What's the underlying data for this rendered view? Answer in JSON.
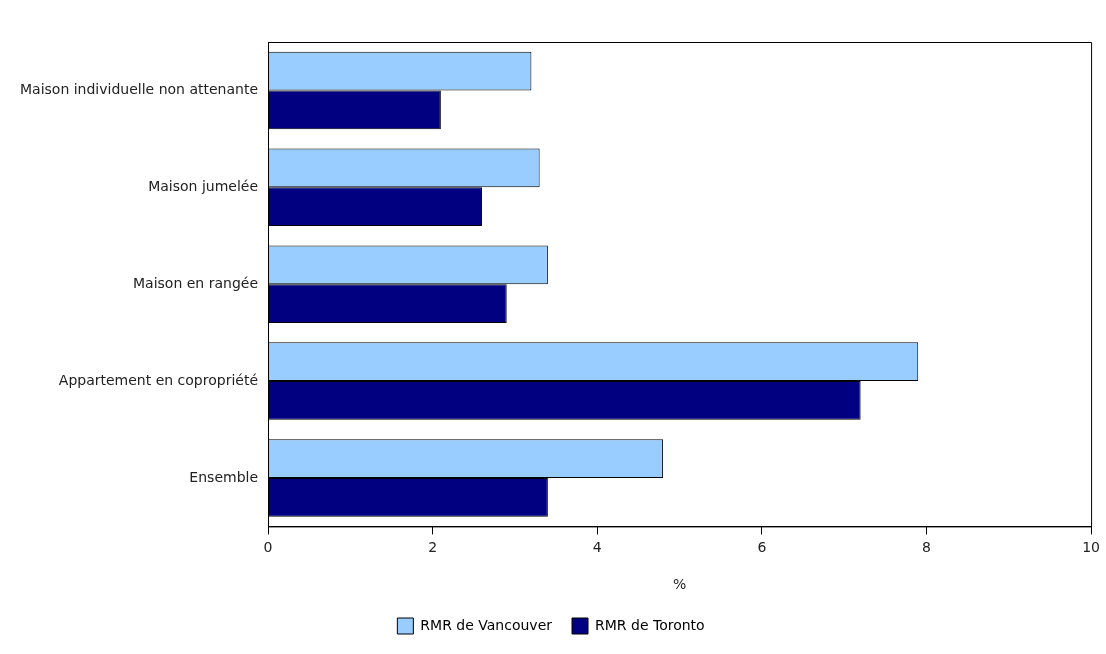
{
  "chart_data": {
    "type": "bar",
    "orientation": "horizontal",
    "xlabel": "%",
    "categories": [
      "Maison individuelle non attenante",
      "Maison jumelée",
      "Maison en rangée",
      "Appartement en copropriété",
      "Ensemble"
    ],
    "series": [
      {
        "name": "RMR de Vancouver",
        "color": "#99ccff",
        "values": [
          3.2,
          3.3,
          3.4,
          7.9,
          4.8
        ]
      },
      {
        "name": "RMR de Toronto",
        "color": "#000080",
        "values": [
          2.1,
          2.6,
          2.9,
          7.2,
          3.4
        ]
      }
    ],
    "xlim": [
      0,
      10
    ],
    "xticks": [
      0,
      2,
      4,
      6,
      8,
      10
    ],
    "grid": false,
    "legend": "bottom"
  }
}
